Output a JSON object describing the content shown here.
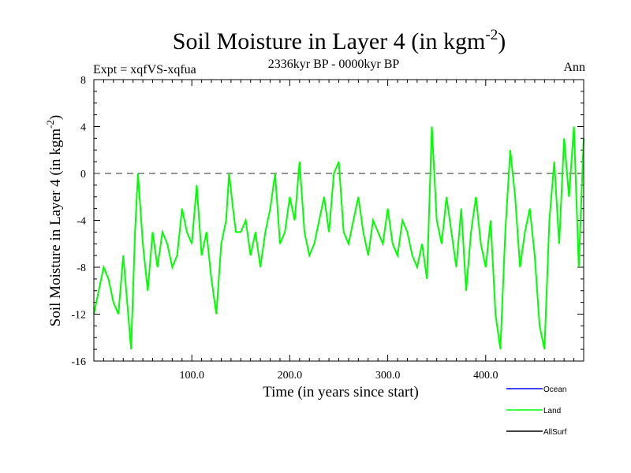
{
  "chart_data": {
    "type": "line",
    "title": "Soil Moisture in Layer 4 (in kgm",
    "title_sup": "-2",
    "title_end": ")",
    "subtitle": "2336kyr BP - 0000kyr BP",
    "expt_label": "Expt = xqfVS-xqfua",
    "season_label": "Ann",
    "xlabel": "Time (in years since start)",
    "ylabel": "Soil Moisture in Layer 4 (in kgm",
    "ylabel_sup": "-2",
    "ylabel_end": ")",
    "xlim": [
      0,
      500
    ],
    "ylim": [
      -16,
      8
    ],
    "xticks": [
      100,
      200,
      300,
      400
    ],
    "xtick_labels": [
      "100.0",
      "200.0",
      "300.0",
      "400.0"
    ],
    "yticks": [
      -16,
      -12,
      -8,
      -4,
      0,
      4,
      8
    ],
    "ytick_labels": [
      "-16",
      "-12",
      "-8",
      "-4",
      "0",
      "4",
      "8"
    ],
    "zero_line": 0,
    "legend": [
      {
        "name": "Ocean",
        "color": "#0000ff"
      },
      {
        "name": "Land",
        "color": "#00ff00"
      },
      {
        "name": "AllSurf",
        "color": "#000000"
      }
    ],
    "series": [
      {
        "name": "Land",
        "color": "#00ff00",
        "x": [
          0,
          5,
          10,
          15,
          20,
          25,
          30,
          35,
          38,
          42,
          45,
          50,
          55,
          60,
          65,
          70,
          75,
          80,
          85,
          90,
          95,
          100,
          105,
          110,
          115,
          120,
          125,
          130,
          135,
          138,
          142,
          145,
          150,
          155,
          160,
          165,
          170,
          175,
          180,
          185,
          190,
          195,
          200,
          205,
          210,
          215,
          220,
          225,
          230,
          235,
          240,
          245,
          250,
          255,
          260,
          265,
          270,
          275,
          280,
          285,
          290,
          295,
          300,
          305,
          310,
          315,
          320,
          325,
          330,
          335,
          340,
          345,
          350,
          355,
          360,
          365,
          370,
          375,
          380,
          385,
          390,
          395,
          400,
          405,
          410,
          415,
          420,
          425,
          430,
          435,
          440,
          445,
          450,
          455,
          460,
          465,
          470,
          475,
          480,
          485,
          490,
          495,
          500
        ],
        "values": [
          -12,
          -10,
          -8,
          -9,
          -11,
          -12,
          -7,
          -12,
          -15,
          -5,
          0,
          -6,
          -10,
          -5,
          -8,
          -5,
          -6,
          -8,
          -7,
          -3,
          -5,
          -6,
          -1,
          -7,
          -5,
          -9,
          -12,
          -6,
          -4,
          0,
          -3,
          -5,
          -5,
          -4,
          -7,
          -5,
          -8,
          -5,
          -3,
          0,
          -6,
          -5,
          -2,
          -4,
          1,
          -5,
          -7,
          -6,
          -4,
          -2,
          -5,
          0,
          1,
          -5,
          -6,
          -4,
          -2,
          -5,
          -7,
          -4,
          -5,
          -6,
          -3,
          -6,
          -7,
          -4,
          -5,
          -7,
          -8,
          -6,
          -9,
          4,
          -4,
          -6,
          -2,
          -5,
          -8,
          -3,
          -10,
          -5,
          -2,
          -6,
          -8,
          -4,
          -12,
          -15,
          -5,
          2,
          -2,
          -8,
          -5,
          -3,
          -7,
          -13,
          -15,
          -4,
          1,
          -6,
          3,
          -2,
          4,
          -8,
          3
        ]
      }
    ]
  }
}
